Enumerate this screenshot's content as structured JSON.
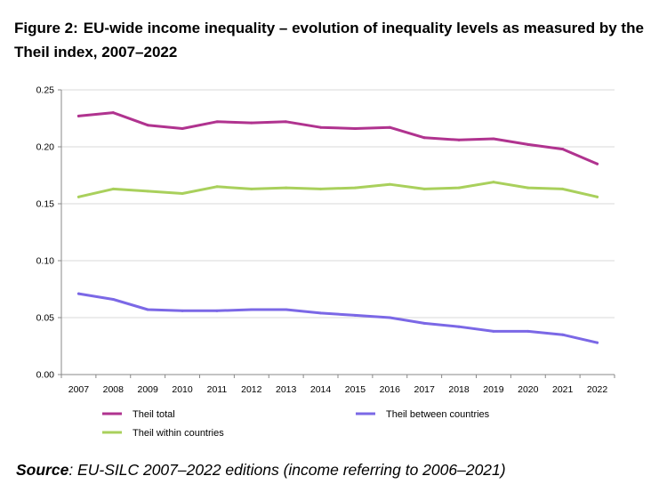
{
  "title": {
    "label": "Figure 2:",
    "text": "EU-wide income inequality – evolution of inequality levels as measured by the Theil index, 2007–2022"
  },
  "source": {
    "label": "Source",
    "text": ": EU-SILC 2007–2022 editions (income referring to 2006–2021)"
  },
  "chart_data": {
    "type": "line",
    "title": "EU-wide income inequality – evolution of inequality levels as measured by the Theil index, 2007–2022",
    "xlabel": "",
    "ylabel": "",
    "ylim": [
      0,
      0.25
    ],
    "yticks": [
      "0.00",
      "0.05",
      "0.10",
      "0.15",
      "0.20",
      "0.25"
    ],
    "grid": true,
    "legend_position": "bottom",
    "categories": [
      "2007",
      "2008",
      "2009",
      "2010",
      "2011",
      "2012",
      "2013",
      "2014",
      "2015",
      "2016",
      "2017",
      "2018",
      "2019",
      "2020",
      "2021",
      "2022"
    ],
    "series": [
      {
        "name": "Theil total",
        "color": "#b0338f",
        "values": [
          0.227,
          0.23,
          0.219,
          0.216,
          0.222,
          0.221,
          0.222,
          0.217,
          0.216,
          0.217,
          0.208,
          0.206,
          0.207,
          0.202,
          0.198,
          0.185
        ]
      },
      {
        "name": "Theil between countries",
        "color": "#7b68e6",
        "values": [
          0.071,
          0.066,
          0.057,
          0.056,
          0.056,
          0.057,
          0.057,
          0.054,
          0.052,
          0.05,
          0.045,
          0.042,
          0.038,
          0.038,
          0.035,
          0.028
        ]
      },
      {
        "name": "Theil within countries",
        "color": "#a9d05c",
        "values": [
          0.156,
          0.163,
          0.161,
          0.159,
          0.165,
          0.163,
          0.164,
          0.163,
          0.164,
          0.167,
          0.163,
          0.164,
          0.169,
          0.164,
          0.163,
          0.156
        ]
      }
    ]
  }
}
